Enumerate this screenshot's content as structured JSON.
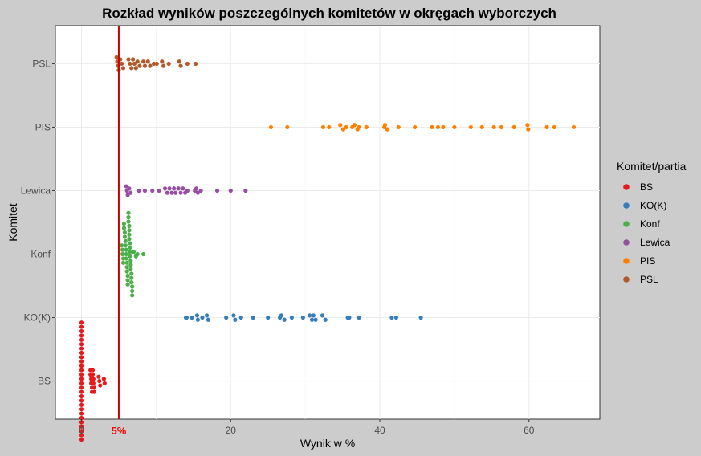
{
  "chart_data": {
    "type": "scatter",
    "subtype": "beeswarm",
    "title": "Rozkład wyników poszczególnych komitetów w okręgach wyborczych",
    "xlabel": "Wynik w %",
    "ylabel": "Komitet",
    "xlim": [
      -3.5,
      69.5
    ],
    "x_ticks": [
      0,
      20,
      40,
      60
    ],
    "categories": [
      "BS",
      "KO(K)",
      "Konf",
      "Lewica",
      "PIS",
      "PSL"
    ],
    "grid": true,
    "legend": {
      "title": "Komitet/partia",
      "position": "right"
    },
    "threshold": {
      "value": 5,
      "label": "5%",
      "color": "#cc0000"
    },
    "series": [
      {
        "name": "BS",
        "color": "#e41a1c",
        "values": [
          0,
          0,
          0,
          0,
          0,
          0,
          0,
          0,
          0,
          0,
          0,
          0,
          0,
          0,
          0,
          0,
          0,
          0,
          0,
          0,
          0,
          0,
          0,
          0,
          0,
          0,
          0,
          0,
          1.2,
          1.2,
          1.3,
          1.3,
          1.4,
          1.4,
          1.5,
          1.5,
          1.6,
          1.6,
          1.7,
          1.7,
          2.3,
          2.4,
          2.5,
          3.0,
          3.1
        ]
      },
      {
        "name": "KO(K)",
        "color": "#377eb8",
        "values": [
          14.0,
          14.1,
          14.8,
          15.5,
          15.6,
          16.2,
          16.8,
          17.0,
          19.4,
          20.4,
          20.6,
          21.4,
          23.0,
          25.0,
          26.6,
          26.8,
          27.2,
          28.2,
          29.7,
          30.6,
          30.9,
          31.1,
          31.4,
          32.3,
          32.7,
          35.7,
          35.9,
          37.2,
          41.6,
          42.2,
          45.5
        ]
      },
      {
        "name": "Konf",
        "color": "#4daf4a",
        "values": [
          5.4,
          5.5,
          5.5,
          5.6,
          5.6,
          5.7,
          5.7,
          5.8,
          5.8,
          5.9,
          5.9,
          6.0,
          6.0,
          6.0,
          6.1,
          6.1,
          6.1,
          6.2,
          6.2,
          6.2,
          6.3,
          6.3,
          6.3,
          6.4,
          6.4,
          6.4,
          6.4,
          6.5,
          6.5,
          6.5,
          6.5,
          6.6,
          6.6,
          6.6,
          6.7,
          6.7,
          6.7,
          6.8,
          6.8,
          6.8,
          7.0,
          7.3,
          7.5,
          8.3
        ]
      },
      {
        "name": "Lewica",
        "color": "#984ea3",
        "values": [
          6.0,
          6.1,
          6.2,
          6.4,
          6.6,
          7.7,
          8.5,
          9.5,
          10.4,
          11.2,
          11.5,
          11.8,
          12.1,
          12.4,
          12.6,
          13.0,
          13.3,
          13.6,
          13.9,
          14.2,
          15.2,
          15.4,
          15.6,
          16.0,
          18.2,
          20.0,
          22.0
        ]
      },
      {
        "name": "PIS",
        "color": "#ff7f00",
        "values": [
          25.4,
          27.6,
          32.4,
          33.2,
          34.7,
          35.1,
          35.5,
          36.3,
          36.6,
          37.0,
          37.2,
          38.2,
          40.6,
          40.7,
          41.0,
          42.5,
          44.7,
          47.0,
          47.8,
          48.5,
          50.0,
          52.2,
          53.7,
          55.3,
          56.3,
          58.0,
          59.8,
          59.9,
          62.4,
          63.4,
          66.0
        ]
      },
      {
        "name": "PSL",
        "color": "#b15928",
        "values": [
          4.7,
          4.8,
          4.9,
          5.0,
          5.2,
          5.4,
          5.6,
          6.3,
          6.5,
          6.7,
          6.9,
          7.1,
          7.3,
          7.5,
          7.8,
          8.3,
          8.5,
          8.9,
          9.2,
          9.7,
          10.1,
          10.8,
          11.0,
          11.7,
          13.1,
          13.3,
          14.2,
          15.3
        ]
      }
    ]
  }
}
